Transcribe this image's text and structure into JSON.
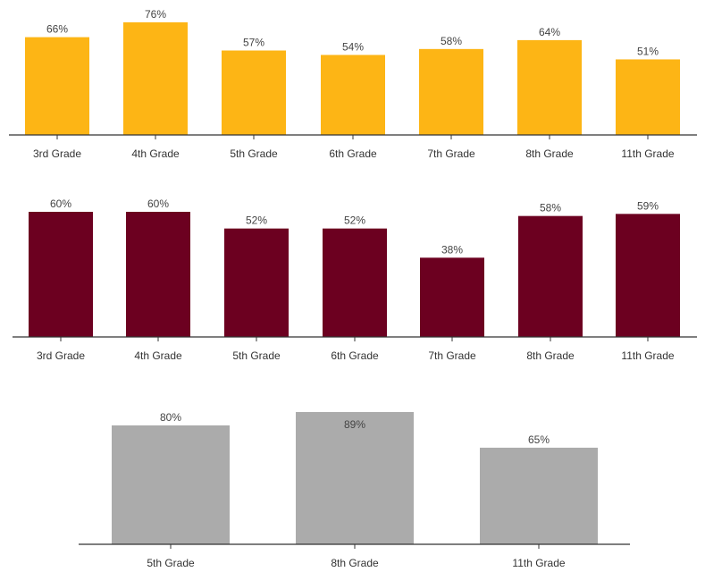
{
  "chart_data": [
    {
      "type": "bar",
      "categories": [
        "3rd Grade",
        "4th Grade",
        "5th Grade",
        "6th Grade",
        "7th Grade",
        "8th Grade",
        "11th Grade"
      ],
      "values": [
        66,
        76,
        57,
        54,
        58,
        64,
        51
      ],
      "value_labels": [
        "66%",
        "76%",
        "57%",
        "54%",
        "58%",
        "64%",
        "51%"
      ],
      "ylim": [
        0,
        76
      ],
      "color": "#FDB515"
    },
    {
      "type": "bar",
      "categories": [
        "3rd Grade",
        "4th Grade",
        "5th Grade",
        "6th Grade",
        "7th Grade",
        "8th Grade",
        "11th Grade"
      ],
      "values": [
        60,
        60,
        52,
        52,
        38,
        58,
        59
      ],
      "value_labels": [
        "60%",
        "60%",
        "52%",
        "52%",
        "38%",
        "58%",
        "59%"
      ],
      "ylim": [
        0,
        60
      ],
      "color": "#6C0020"
    },
    {
      "type": "bar",
      "categories": [
        "5th Grade",
        "8th Grade",
        "11th Grade"
      ],
      "values": [
        80,
        89,
        65
      ],
      "value_labels": [
        "80%",
        "89%",
        "65%"
      ],
      "ylim": [
        0,
        89
      ],
      "color": "#ABABAB"
    }
  ]
}
